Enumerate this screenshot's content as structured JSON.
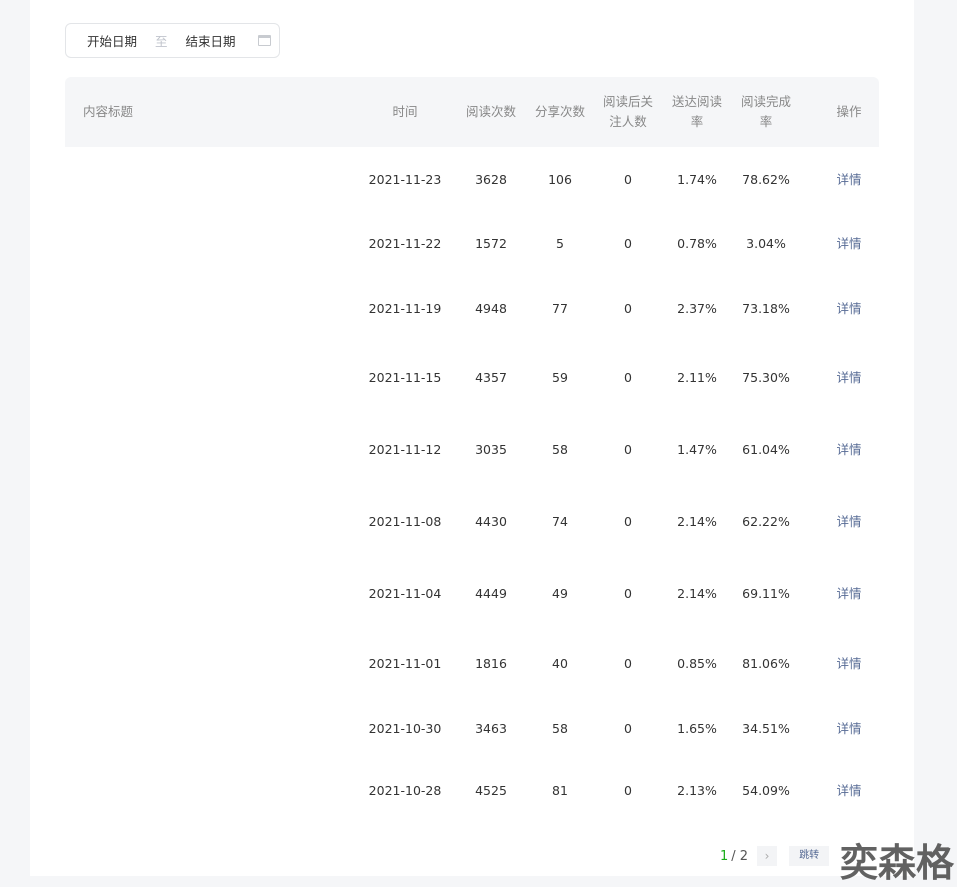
{
  "datepicker": {
    "start": "开始日期",
    "separator": "至",
    "end": "结束日期",
    "icon": "calendar-icon"
  },
  "table": {
    "headers": [
      "内容标题",
      "时间",
      "阅读次数",
      "分享次数",
      "阅读后关\n注人数",
      "送达阅读\n率",
      "阅读完成\n率",
      "操作"
    ],
    "rows": [
      {
        "date": "2021-11-23",
        "reads": "3628",
        "shares": "106",
        "follows": "0",
        "delivery_rate": "1.74%",
        "completion_rate": "78.62%",
        "action": "详情"
      },
      {
        "date": "2021-11-22",
        "reads": "1572",
        "shares": "5",
        "follows": "0",
        "delivery_rate": "0.78%",
        "completion_rate": "3.04%",
        "action": "详情"
      },
      {
        "date": "2021-11-19",
        "reads": "4948",
        "shares": "77",
        "follows": "0",
        "delivery_rate": "2.37%",
        "completion_rate": "73.18%",
        "action": "详情"
      },
      {
        "date": "2021-11-15",
        "reads": "4357",
        "shares": "59",
        "follows": "0",
        "delivery_rate": "2.11%",
        "completion_rate": "75.30%",
        "action": "详情"
      },
      {
        "date": "2021-11-12",
        "reads": "3035",
        "shares": "58",
        "follows": "0",
        "delivery_rate": "1.47%",
        "completion_rate": "61.04%",
        "action": "详情"
      },
      {
        "date": "2021-11-08",
        "reads": "4430",
        "shares": "74",
        "follows": "0",
        "delivery_rate": "2.14%",
        "completion_rate": "62.22%",
        "action": "详情"
      },
      {
        "date": "2021-11-04",
        "reads": "4449",
        "shares": "49",
        "follows": "0",
        "delivery_rate": "2.14%",
        "completion_rate": "69.11%",
        "action": "详情"
      },
      {
        "date": "2021-11-01",
        "reads": "1816",
        "shares": "40",
        "follows": "0",
        "delivery_rate": "0.85%",
        "completion_rate": "81.06%",
        "action": "详情"
      },
      {
        "date": "2021-10-30",
        "reads": "3463",
        "shares": "58",
        "follows": "0",
        "delivery_rate": "1.65%",
        "completion_rate": "34.51%",
        "action": "详情"
      },
      {
        "date": "2021-10-28",
        "reads": "4525",
        "shares": "81",
        "follows": "0",
        "delivery_rate": "2.13%",
        "completion_rate": "54.09%",
        "action": "详情"
      }
    ]
  },
  "pagination": {
    "current": "1",
    "total": "/ 2",
    "next": "›",
    "jump": "跳转"
  },
  "watermark": "奕森格",
  "colors": {
    "link": "#576b95",
    "current_page": "#1aad19",
    "header_bg": "#f5f6f8"
  }
}
